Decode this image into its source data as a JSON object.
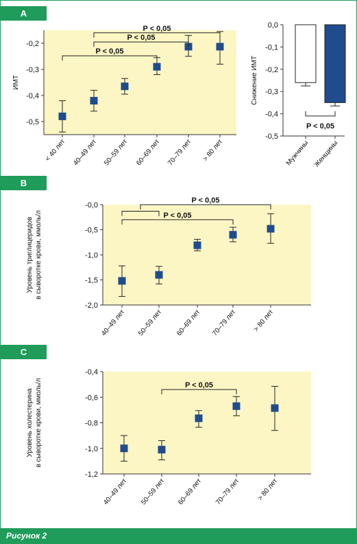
{
  "figure": {
    "caption": "Рисунок 2",
    "accent_color": "#1f9b5a",
    "plot_bg": "#fcf6c4",
    "marker_color": "#1f4c8c"
  },
  "chart_data": [
    {
      "id": "A-age",
      "panel_label": "A",
      "type": "scatter",
      "error_bars": true,
      "ylabel": "ИМТ",
      "ylim": [
        -0.55,
        -0.15
      ],
      "yticks": [
        -0.2,
        -0.3,
        -0.4,
        -0.5
      ],
      "ytick_labels": [
        "-0,2",
        "-0,3",
        "-0,4",
        "-0,5"
      ],
      "categories": [
        "< 40 лет",
        "40–49 лет",
        "50–59 лет",
        "60–69 лет",
        "70–79 лет",
        "> 80 лет"
      ],
      "values": [
        -0.48,
        -0.42,
        -0.365,
        -0.29,
        -0.213,
        -0.213
      ],
      "error_low": [
        -0.54,
        -0.46,
        -0.395,
        -0.32,
        -0.25,
        -0.28
      ],
      "error_high": [
        -0.42,
        -0.38,
        -0.335,
        -0.255,
        -0.17,
        -0.155
      ],
      "brackets": [
        {
          "from": 1,
          "to": 5,
          "label": "P < 0,05",
          "level": -0.16
        },
        {
          "from": 1,
          "to": 4,
          "label": "P < 0,05",
          "level": -0.195
        },
        {
          "from": 0,
          "to": 3,
          "label": "P < 0,05",
          "level": -0.248
        }
      ]
    },
    {
      "id": "A-sex",
      "panel_label": "",
      "type": "bar",
      "ylabel": "Снижение ИМТ",
      "ylim": [
        -0.5,
        0.0
      ],
      "yticks": [
        0.0,
        -0.1,
        -0.2,
        -0.3,
        -0.4,
        -0.5
      ],
      "ytick_labels": [
        "0,0",
        "-0,1",
        "-0,2",
        "-0,3",
        "-0,4",
        "-0,5"
      ],
      "categories": [
        "Мужчины",
        "Женщины"
      ],
      "values": [
        -0.26,
        -0.35
      ],
      "error_low": [
        -0.275,
        -0.365
      ],
      "error_high": [
        -0.26,
        -0.35
      ],
      "bar_colors": [
        "#ffffff",
        "#1f4c8c"
      ],
      "brackets": [
        {
          "from": 0,
          "to": 1,
          "label": "P < 0,05",
          "level": -0.41,
          "below": true
        }
      ]
    },
    {
      "id": "B",
      "panel_label": "B",
      "type": "scatter",
      "error_bars": true,
      "ylabel": "Уровень триглицеридов\nв сыворотке крови, ммоль/л",
      "ylim": [
        -2.0,
        0.0
      ],
      "yticks": [
        0.0,
        -0.5,
        -1.0,
        -1.5,
        -2.0
      ],
      "ytick_labels": [
        "-0,0",
        "-0,5",
        "-1,0",
        "-1,5",
        "-2,0"
      ],
      "categories": [
        "40–49 лет",
        "50–59 лет",
        "60–69 лет",
        "70–79 лет",
        "> 80 лет"
      ],
      "values": [
        -1.52,
        -1.4,
        -0.81,
        -0.6,
        -0.48
      ],
      "error_low": [
        -1.83,
        -1.58,
        -0.92,
        -0.74,
        -0.77
      ],
      "error_high": [
        -1.22,
        -1.23,
        -0.69,
        -0.45,
        -0.18
      ],
      "brackets": [
        {
          "from": 0.5,
          "to": 4,
          "label": "P < 0,05",
          "level": -0.0
        },
        {
          "from": 0,
          "to": 1,
          "label": "",
          "level": -0.13
        },
        {
          "from": 0,
          "to": 3,
          "label": "P < 0,05",
          "level": -0.3
        }
      ]
    },
    {
      "id": "C",
      "panel_label": "C",
      "type": "scatter",
      "error_bars": true,
      "ylabel": "Уровень холестерина\nв сыворотке крови, ммоль/л",
      "ylim": [
        -1.2,
        -0.4
      ],
      "yticks": [
        -0.4,
        -0.6,
        -0.8,
        -1.0,
        -1.2
      ],
      "ytick_labels": [
        "-0,4",
        "-0,6",
        "-0,8",
        "-1,0",
        "-1,2"
      ],
      "categories": [
        "40–49 лет",
        "50–59 лет",
        "60–69 лет",
        "70–79 лет",
        "> 80 лет"
      ],
      "values": [
        -1.0,
        -1.01,
        -0.765,
        -0.67,
        -0.685
      ],
      "error_low": [
        -1.1,
        -1.09,
        -0.835,
        -0.745,
        -0.86
      ],
      "error_high": [
        -0.9,
        -0.94,
        -0.705,
        -0.595,
        -0.515
      ],
      "brackets": [
        {
          "from": 1,
          "to": 3,
          "label": "P < 0,05",
          "level": -0.54
        }
      ]
    }
  ]
}
